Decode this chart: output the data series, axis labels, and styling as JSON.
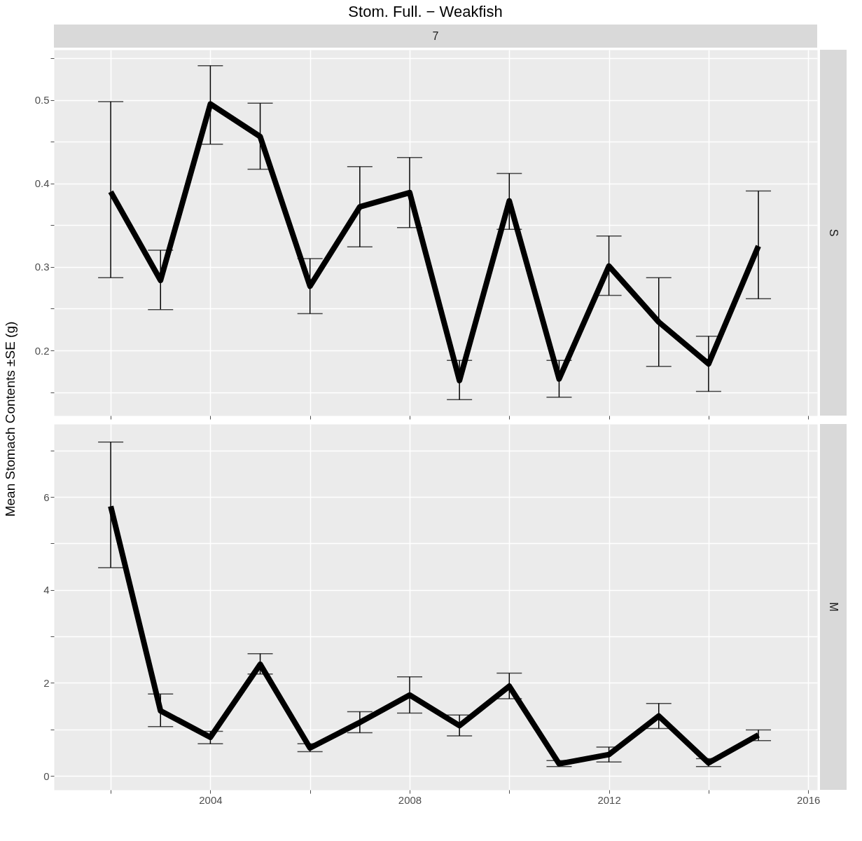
{
  "chart_data": [
    {
      "type": "line",
      "title": "Stom. Full. − Weakfish",
      "ylabel": "Mean Stomach Contents ±SE (g)",
      "annotations": [
        "7",
        "S"
      ],
      "x": [
        2002,
        2003,
        2004,
        2005,
        2006,
        2007,
        2008,
        2009,
        2010,
        2011,
        2012,
        2013,
        2014,
        2015
      ],
      "series": [
        {
          "color": "#000000",
          "values": [
            0.39,
            0.284,
            0.495,
            0.456,
            0.277,
            0.372,
            0.389,
            0.164,
            0.379,
            0.166,
            0.301,
            0.234,
            0.184,
            0.325
          ],
          "errors": [
            [
              0.287,
              0.498
            ],
            [
              0.249,
              0.32
            ],
            [
              0.447,
              0.541
            ],
            [
              0.417,
              0.496
            ],
            [
              0.244,
              0.31
            ],
            [
              0.324,
              0.42
            ],
            [
              0.347,
              0.431
            ],
            [
              0.141,
              0.188
            ],
            [
              0.345,
              0.412
            ],
            [
              0.144,
              0.188
            ],
            [
              0.266,
              0.337
            ],
            [
              0.181,
              0.287
            ],
            [
              0.151,
              0.217
            ],
            [
              0.262,
              0.391
            ]
          ]
        }
      ],
      "xlim": [
        2000.86,
        2016.18
      ],
      "xticks": [
        {
          "value": 2002,
          "label": null
        },
        2004,
        {
          "value": 2006,
          "label": null
        },
        2008,
        {
          "value": 2010,
          "label": null
        },
        2012,
        {
          "value": 2014,
          "label": null
        },
        2016
      ],
      "ylim": [
        0.122,
        0.56
      ],
      "yticks": [
        {
          "value": 0.15,
          "label": null
        },
        0.2,
        {
          "value": 0.25,
          "label": null
        },
        0.3,
        {
          "value": 0.35,
          "label": null
        },
        0.4,
        {
          "value": 0.45,
          "label": null
        },
        0.5,
        {
          "value": 0.55,
          "label": null
        }
      ],
      "tick_labels": "y",
      "grid": true,
      "marker": "none",
      "line_style": "solid"
    },
    {
      "type": "line",
      "annotations": [
        "M"
      ],
      "x": [
        2002,
        2003,
        2004,
        2005,
        2006,
        2007,
        2008,
        2009,
        2010,
        2011,
        2012,
        2013,
        2014,
        2015
      ],
      "series": [
        {
          "color": "#000000",
          "values": [
            5.8,
            1.4,
            0.83,
            2.4,
            0.6,
            1.15,
            1.74,
            1.08,
            1.93,
            0.26,
            0.46,
            1.29,
            0.28,
            0.88
          ],
          "errors": [
            [
              4.48,
              7.18
            ],
            [
              1.06,
              1.76
            ],
            [
              0.69,
              0.96
            ],
            [
              2.19,
              2.63
            ],
            [
              0.52,
              0.69
            ],
            [
              0.93,
              1.38
            ],
            [
              1.35,
              2.13
            ],
            [
              0.86,
              1.31
            ],
            [
              1.66,
              2.21
            ],
            [
              0.2,
              0.33
            ],
            [
              0.3,
              0.62
            ],
            [
              1.02,
              1.56
            ],
            [
              0.2,
              0.37
            ],
            [
              0.76,
              0.99
            ]
          ]
        }
      ],
      "xlim": [
        2000.86,
        2016.18
      ],
      "xticks": [
        {
          "value": 2002,
          "label": null
        },
        2004,
        {
          "value": 2006,
          "label": null
        },
        2008,
        {
          "value": 2010,
          "label": null
        },
        2012,
        {
          "value": 2014,
          "label": null
        },
        2016
      ],
      "ylim": [
        -0.3,
        7.57
      ],
      "yticks": [
        0,
        {
          "value": 1,
          "label": null
        },
        2,
        {
          "value": 3,
          "label": null
        },
        4,
        {
          "value": 5,
          "label": null
        },
        6,
        {
          "value": 7,
          "label": null
        }
      ],
      "grid": true,
      "marker": "none",
      "line_style": "solid"
    }
  ]
}
